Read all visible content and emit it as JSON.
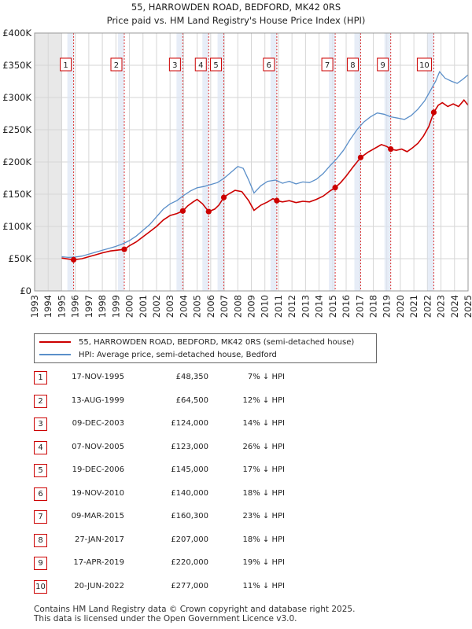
{
  "chart_data": {
    "type": "line",
    "title": "55, HARROWDEN ROAD, BEDFORD, MK42 0RS",
    "subtitle": "Price paid vs. HM Land Registry's House Price Index (HPI)",
    "xlabel": "",
    "ylabel": "",
    "xlim": [
      1993,
      2025
    ],
    "ylim": [
      0,
      400000
    ],
    "y_ticks": [
      {
        "value": 0,
        "label": "£0"
      },
      {
        "value": 50000,
        "label": "£50K"
      },
      {
        "value": 100000,
        "label": "£100K"
      },
      {
        "value": 150000,
        "label": "£150K"
      },
      {
        "value": 200000,
        "label": "£200K"
      },
      {
        "value": 250000,
        "label": "£250K"
      },
      {
        "value": 300000,
        "label": "£300K"
      },
      {
        "value": 350000,
        "label": "£350K"
      },
      {
        "value": 400000,
        "label": "£400K"
      }
    ],
    "x_ticks": [
      "1993",
      "1994",
      "1995",
      "1996",
      "1997",
      "1998",
      "1999",
      "2000",
      "2001",
      "2002",
      "2003",
      "2004",
      "2005",
      "2006",
      "2007",
      "2008",
      "2009",
      "2010",
      "2011",
      "2012",
      "2013",
      "2014",
      "2015",
      "2016",
      "2017",
      "2018",
      "2019",
      "2020",
      "2021",
      "2022",
      "2023",
      "2024",
      "2025"
    ],
    "data_start_year": 1995,
    "grid": true,
    "series": [
      {
        "name": "55, HARROWDEN ROAD, BEDFORD, MK42 0RS (semi-detached house)",
        "color": "#cc0000",
        "points": [
          [
            1995.0,
            51000
          ],
          [
            1995.88,
            48350
          ],
          [
            1996.5,
            50000
          ],
          [
            1997.0,
            53000
          ],
          [
            1997.5,
            56000
          ],
          [
            1998.0,
            59000
          ],
          [
            1998.6,
            62000
          ],
          [
            1999.2,
            63500
          ],
          [
            1999.62,
            64500
          ],
          [
            2000.0,
            70000
          ],
          [
            2000.5,
            76000
          ],
          [
            2001.0,
            84000
          ],
          [
            2001.5,
            92000
          ],
          [
            2002.0,
            100000
          ],
          [
            2002.5,
            110000
          ],
          [
            2003.0,
            117000
          ],
          [
            2003.5,
            120000
          ],
          [
            2003.94,
            124000
          ],
          [
            2004.3,
            132000
          ],
          [
            2004.7,
            138000
          ],
          [
            2005.0,
            142000
          ],
          [
            2005.4,
            135000
          ],
          [
            2005.85,
            123000
          ],
          [
            2006.3,
            127000
          ],
          [
            2006.6,
            133000
          ],
          [
            2006.97,
            145000
          ],
          [
            2007.3,
            150000
          ],
          [
            2007.8,
            156000
          ],
          [
            2008.3,
            154000
          ],
          [
            2008.8,
            140000
          ],
          [
            2009.2,
            125000
          ],
          [
            2009.7,
            133000
          ],
          [
            2010.2,
            138000
          ],
          [
            2010.6,
            143000
          ],
          [
            2010.88,
            140000
          ],
          [
            2011.3,
            138000
          ],
          [
            2011.8,
            140000
          ],
          [
            2012.3,
            137000
          ],
          [
            2012.8,
            139000
          ],
          [
            2013.3,
            138000
          ],
          [
            2013.8,
            142000
          ],
          [
            2014.3,
            147000
          ],
          [
            2014.8,
            155000
          ],
          [
            2015.19,
            160300
          ],
          [
            2015.6,
            168000
          ],
          [
            2016.0,
            178000
          ],
          [
            2016.5,
            192000
          ],
          [
            2017.07,
            207000
          ],
          [
            2017.6,
            215000
          ],
          [
            2018.1,
            221000
          ],
          [
            2018.6,
            227000
          ],
          [
            2019.0,
            224000
          ],
          [
            2019.29,
            220000
          ],
          [
            2019.7,
            218000
          ],
          [
            2020.1,
            220000
          ],
          [
            2020.5,
            216000
          ],
          [
            2020.9,
            222000
          ],
          [
            2021.3,
            229000
          ],
          [
            2021.7,
            240000
          ],
          [
            2022.1,
            255000
          ],
          [
            2022.47,
            277000
          ],
          [
            2022.8,
            288000
          ],
          [
            2023.1,
            292000
          ],
          [
            2023.5,
            286000
          ],
          [
            2023.9,
            290000
          ],
          [
            2024.3,
            286000
          ],
          [
            2024.7,
            296000
          ],
          [
            2025.0,
            288000
          ]
        ]
      },
      {
        "name": "HPI: Average price, semi-detached house, Bedford",
        "color": "#5b8fc9",
        "points": [
          [
            1995.0,
            53000
          ],
          [
            1995.5,
            52000
          ],
          [
            1996.0,
            52500
          ],
          [
            1996.5,
            54000
          ],
          [
            1997.0,
            57000
          ],
          [
            1997.5,
            60000
          ],
          [
            1998.0,
            63000
          ],
          [
            1998.5,
            66000
          ],
          [
            1999.0,
            69000
          ],
          [
            1999.5,
            73000
          ],
          [
            2000.0,
            78000
          ],
          [
            2000.5,
            85000
          ],
          [
            2001.0,
            94000
          ],
          [
            2001.5,
            103000
          ],
          [
            2002.0,
            115000
          ],
          [
            2002.5,
            127000
          ],
          [
            2003.0,
            135000
          ],
          [
            2003.5,
            140000
          ],
          [
            2004.0,
            148000
          ],
          [
            2004.5,
            155000
          ],
          [
            2005.0,
            160000
          ],
          [
            2005.5,
            162000
          ],
          [
            2006.0,
            165000
          ],
          [
            2006.5,
            168000
          ],
          [
            2007.0,
            175000
          ],
          [
            2007.5,
            184000
          ],
          [
            2008.0,
            193000
          ],
          [
            2008.4,
            190000
          ],
          [
            2008.8,
            172000
          ],
          [
            2009.2,
            152000
          ],
          [
            2009.7,
            163000
          ],
          [
            2010.2,
            170000
          ],
          [
            2010.8,
            172000
          ],
          [
            2011.3,
            167000
          ],
          [
            2011.8,
            170000
          ],
          [
            2012.3,
            166000
          ],
          [
            2012.8,
            169000
          ],
          [
            2013.3,
            168000
          ],
          [
            2013.8,
            173000
          ],
          [
            2014.3,
            182000
          ],
          [
            2014.8,
            194000
          ],
          [
            2015.3,
            205000
          ],
          [
            2015.8,
            218000
          ],
          [
            2016.3,
            235000
          ],
          [
            2016.8,
            250000
          ],
          [
            2017.3,
            262000
          ],
          [
            2017.8,
            270000
          ],
          [
            2018.3,
            276000
          ],
          [
            2018.8,
            274000
          ],
          [
            2019.3,
            270000
          ],
          [
            2019.8,
            268000
          ],
          [
            2020.3,
            266000
          ],
          [
            2020.8,
            272000
          ],
          [
            2021.3,
            282000
          ],
          [
            2021.8,
            295000
          ],
          [
            2022.2,
            310000
          ],
          [
            2022.6,
            325000
          ],
          [
            2022.9,
            340000
          ],
          [
            2023.3,
            330000
          ],
          [
            2023.8,
            325000
          ],
          [
            2024.2,
            322000
          ],
          [
            2024.6,
            328000
          ],
          [
            2025.0,
            335000
          ]
        ]
      }
    ],
    "sales": [
      {
        "num": "1",
        "date": "17-NOV-1995",
        "x": 1995.88,
        "price_value": 48350,
        "price": "£48,350",
        "hpi": "7% ↓ HPI"
      },
      {
        "num": "2",
        "date": "13-AUG-1999",
        "x": 1999.62,
        "price_value": 64500,
        "price": "£64,500",
        "hpi": "12% ↓ HPI"
      },
      {
        "num": "3",
        "date": "09-DEC-2003",
        "x": 2003.94,
        "price_value": 124000,
        "price": "£124,000",
        "hpi": "14% ↓ HPI"
      },
      {
        "num": "4",
        "date": "07-NOV-2005",
        "x": 2005.85,
        "price_value": 123000,
        "price": "£123,000",
        "hpi": "26% ↓ HPI"
      },
      {
        "num": "5",
        "date": "19-DEC-2006",
        "x": 2006.97,
        "price_value": 145000,
        "price": "£145,000",
        "hpi": "17% ↓ HPI"
      },
      {
        "num": "6",
        "date": "19-NOV-2010",
        "x": 2010.88,
        "price_value": 140000,
        "price": "£140,000",
        "hpi": "18% ↓ HPI"
      },
      {
        "num": "7",
        "date": "09-MAR-2015",
        "x": 2015.19,
        "price_value": 160300,
        "price": "£160,300",
        "hpi": "23% ↓ HPI"
      },
      {
        "num": "8",
        "date": "27-JAN-2017",
        "x": 2017.07,
        "price_value": 207000,
        "price": "£207,000",
        "hpi": "18% ↓ HPI"
      },
      {
        "num": "9",
        "date": "17-APR-2019",
        "x": 2019.29,
        "price_value": 220000,
        "price": "£220,000",
        "hpi": "19% ↓ HPI"
      },
      {
        "num": "10",
        "date": "20-JUN-2022",
        "x": 2022.47,
        "price_value": 277000,
        "price": "£277,000",
        "hpi": "11% ↓ HPI"
      }
    ]
  },
  "legend": {
    "red_label": "55, HARROWDEN ROAD, BEDFORD, MK42 0RS (semi-detached house)",
    "blue_label": "HPI: Average price, semi-detached house, Bedford"
  },
  "footer": {
    "line1": "Contains HM Land Registry data © Crown copyright and database right 2025.",
    "line2": "This data is licensed under the Open Government Licence v3.0."
  }
}
